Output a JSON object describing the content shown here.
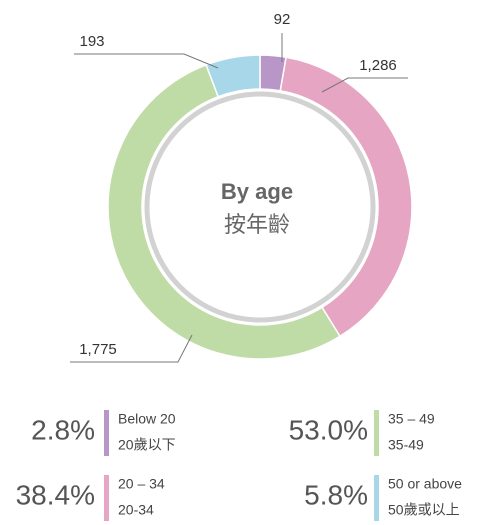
{
  "chart_data": {
    "type": "donut",
    "title": "By age",
    "subtitle": "按年齡",
    "categories": [
      "Below 20",
      "20 – 34",
      "35 – 49",
      "50 or above"
    ],
    "categories_zh": [
      "20歲以下",
      "20-34",
      "35-49",
      "50歲或以上"
    ],
    "values": [
      92,
      1286,
      1775,
      193
    ],
    "value_labels": [
      "92",
      "1,286",
      "1,775",
      "193"
    ],
    "percent_labels": [
      "2.8%",
      "38.4%",
      "53.0%",
      "5.8%"
    ],
    "colors": [
      "#b896c8",
      "#e6a5c2",
      "#bfdca6",
      "#a8d7ea"
    ]
  }
}
